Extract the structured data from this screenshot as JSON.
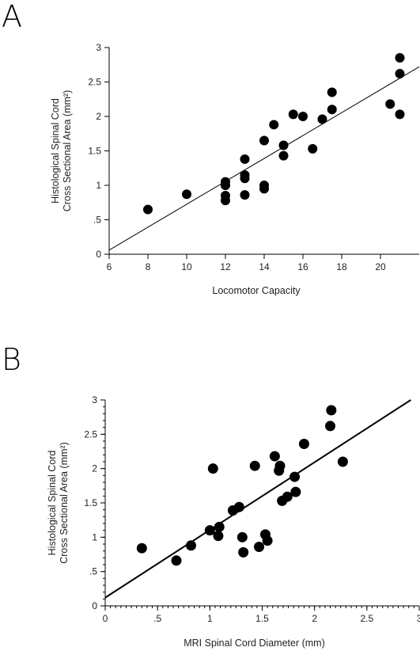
{
  "panels": {
    "a": {
      "letter": "A"
    },
    "b": {
      "letter": "B"
    }
  },
  "chart_data": [
    {
      "type": "scatter",
      "panel": "A",
      "title": "",
      "xlabel": "Locomotor Capacity",
      "ylabel_line1": "Histological Spinal Cord",
      "ylabel_line2": "Cross Sectional Area (mm²)",
      "xlim": [
        6,
        22
      ],
      "ylim": [
        0,
        3
      ],
      "xticks": [
        6,
        8,
        10,
        12,
        14,
        16,
        18,
        20
      ],
      "xtick_labels": [
        "6",
        "8",
        "10",
        "12",
        "14",
        "16",
        "18",
        "20"
      ],
      "yticks": [
        0,
        0.5,
        1,
        1.5,
        2,
        2.5,
        3
      ],
      "ytick_labels": [
        "0",
        ".5",
        "1",
        "1.5",
        "2",
        "2.5",
        "3"
      ],
      "grid": false,
      "series": [
        {
          "points": [
            [
              8,
              0.65
            ],
            [
              10,
              0.87
            ],
            [
              12,
              1.05
            ],
            [
              12,
              1.0
            ],
            [
              12,
              0.85
            ],
            [
              12,
              0.78
            ],
            [
              13,
              1.38
            ],
            [
              13,
              1.15
            ],
            [
              13,
              1.1
            ],
            [
              13,
              0.86
            ],
            [
              14,
              1.65
            ],
            [
              14,
              1.0
            ],
            [
              14,
              0.95
            ],
            [
              14.5,
              1.88
            ],
            [
              15,
              1.58
            ],
            [
              15,
              1.43
            ],
            [
              15.5,
              2.03
            ],
            [
              16,
              2.0
            ],
            [
              16.5,
              1.53
            ],
            [
              17,
              1.96
            ],
            [
              17.5,
              2.35
            ],
            [
              17.5,
              2.1
            ],
            [
              20.5,
              2.18
            ],
            [
              21,
              2.85
            ],
            [
              21,
              2.62
            ],
            [
              21,
              2.03
            ]
          ]
        }
      ],
      "fit_line": [
        [
          6,
          0.06
        ],
        [
          22,
          2.72
        ]
      ]
    },
    {
      "type": "scatter",
      "panel": "B",
      "title": "",
      "xlabel": "MRI  Spinal Cord  Diameter (mm)",
      "ylabel_line1": "Histological Spinal Cord",
      "ylabel_line2": "Cross Sectional Area (mm²)",
      "xlim": [
        0,
        3
      ],
      "ylim": [
        0,
        3
      ],
      "xticks": [
        0,
        0.5,
        1,
        1.5,
        2,
        2.5,
        3
      ],
      "xtick_labels": [
        "0",
        ".5",
        "1",
        "1.5",
        "2",
        "2.5",
        "3"
      ],
      "yticks": [
        0,
        0.5,
        1,
        1.5,
        2,
        2.5,
        3
      ],
      "ytick_labels": [
        "0",
        ".5",
        "1",
        "1.5",
        "2",
        "2.5",
        "3"
      ],
      "grid": false,
      "series": [
        {
          "points": [
            [
              0.35,
              0.84
            ],
            [
              0.68,
              0.66
            ],
            [
              0.82,
              0.88
            ],
            [
              1.0,
              1.1
            ],
            [
              1.03,
              2.0
            ],
            [
              1.08,
              1.02
            ],
            [
              1.09,
              1.15
            ],
            [
              1.22,
              1.39
            ],
            [
              1.28,
              1.44
            ],
            [
              1.31,
              1.0
            ],
            [
              1.32,
              0.78
            ],
            [
              1.43,
              2.04
            ],
            [
              1.47,
              0.86
            ],
            [
              1.53,
              1.04
            ],
            [
              1.55,
              0.95
            ],
            [
              1.62,
              2.18
            ],
            [
              1.66,
              1.97
            ],
            [
              1.67,
              2.04
            ],
            [
              1.69,
              1.53
            ],
            [
              1.74,
              1.59
            ],
            [
              1.81,
              1.88
            ],
            [
              1.82,
              1.66
            ],
            [
              1.9,
              2.36
            ],
            [
              2.15,
              2.62
            ],
            [
              2.16,
              2.85
            ],
            [
              2.27,
              2.1
            ]
          ]
        }
      ],
      "fit_line": [
        [
          0,
          0.12
        ],
        [
          2.92,
          3.0
        ]
      ]
    }
  ]
}
